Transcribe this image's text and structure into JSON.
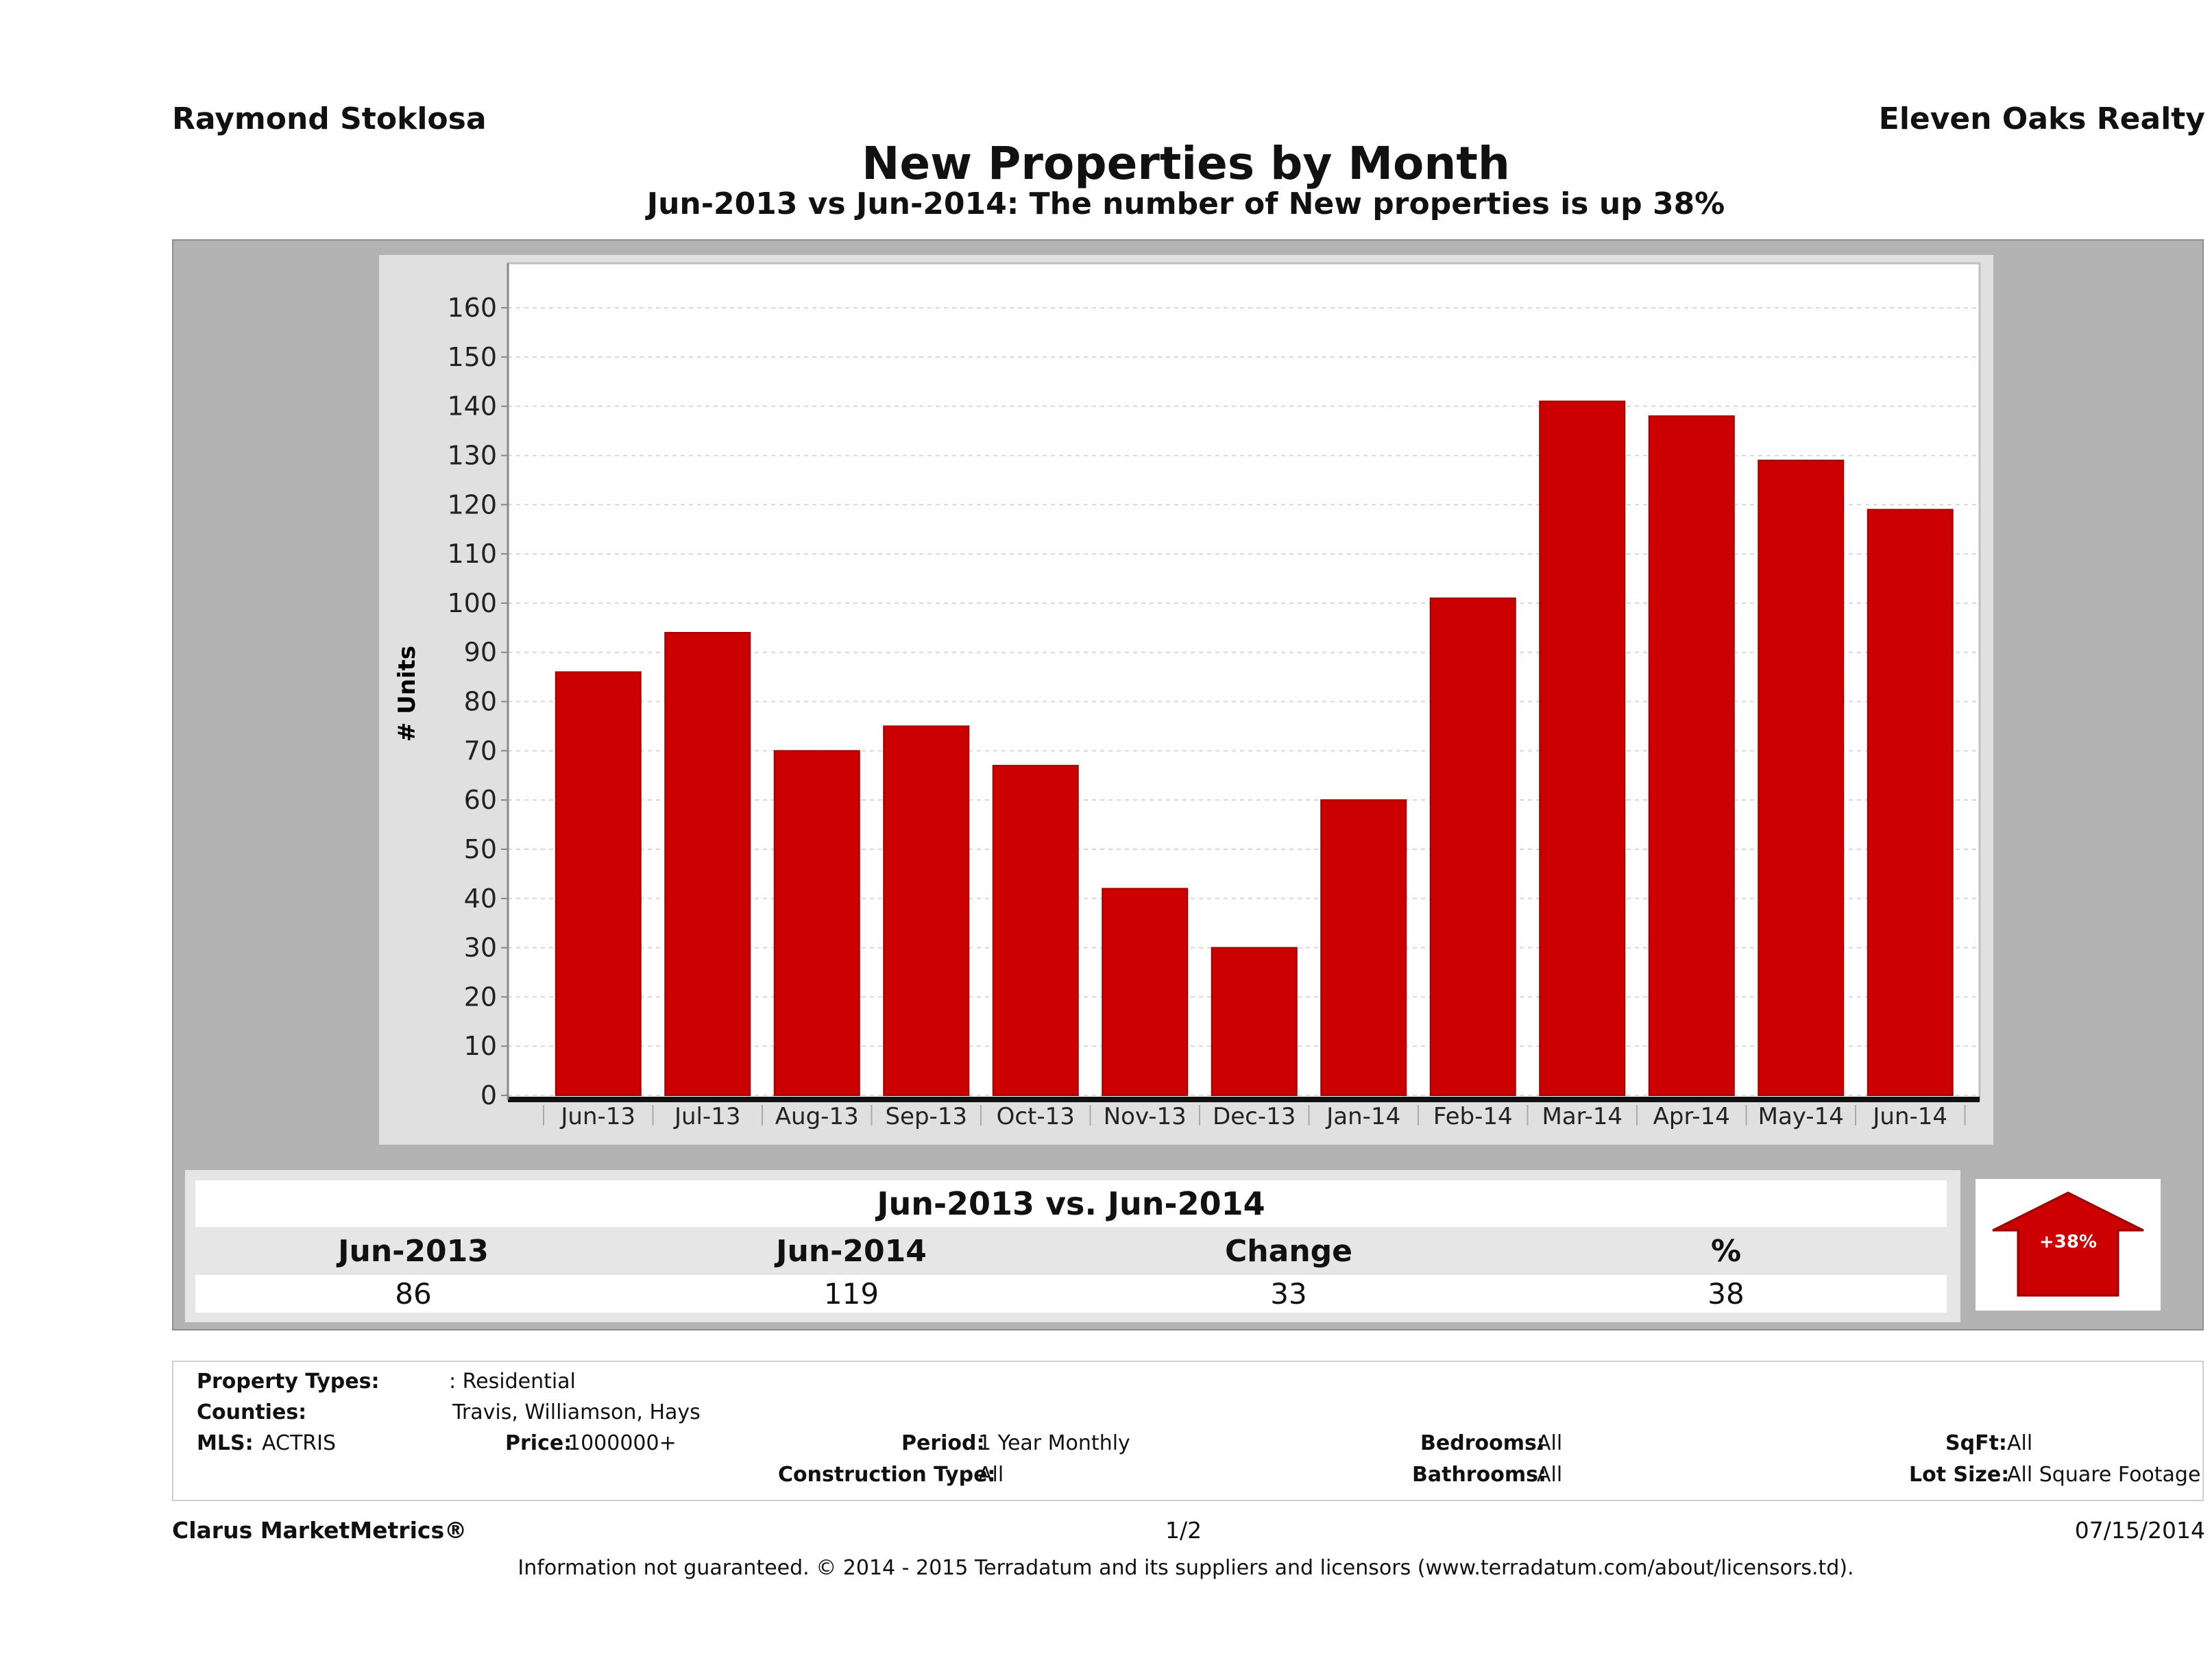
{
  "header": {
    "agent_name": "Raymond Stoklosa",
    "company": "Eleven Oaks Realty",
    "title": "New Properties by Month",
    "subtitle": "Jun-2013 vs Jun-2014: The number of New  properties is up 38%"
  },
  "chart_data": {
    "type": "bar",
    "title": "New Properties by Month",
    "subtitle": "Jun-2013 vs Jun-2014: The number of New  properties is up 38%",
    "xlabel": "",
    "ylabel": "# Units",
    "categories": [
      "Jun-13",
      "Jul-13",
      "Aug-13",
      "Sep-13",
      "Oct-13",
      "Nov-13",
      "Dec-13",
      "Jan-14",
      "Feb-14",
      "Mar-14",
      "Apr-14",
      "May-14",
      "Jun-14"
    ],
    "values": [
      86,
      94,
      70,
      75,
      67,
      42,
      30,
      60,
      101,
      141,
      138,
      129,
      119
    ],
    "ylim": [
      0,
      160
    ],
    "yticks": [
      0,
      10,
      20,
      30,
      40,
      50,
      60,
      70,
      80,
      90,
      100,
      110,
      120,
      130,
      140,
      150,
      160
    ],
    "grid": true,
    "legend": "none",
    "bar_color": "#cc0000"
  },
  "summary": {
    "title": "Jun-2013 vs. Jun-2014",
    "headers": [
      "Jun-2013",
      "Jun-2014",
      "Change",
      "%"
    ],
    "values": [
      "86",
      "119",
      "33",
      "38"
    ],
    "badge": "+38%",
    "badge_color": "#cc0000"
  },
  "criteria": {
    "property_types_label": "Property Types:",
    "property_types_value": ": Residential",
    "counties_label": "Counties:",
    "counties_value": "Travis, Williamson, Hays",
    "mls_label": "MLS:",
    "mls_value": "ACTRIS",
    "price_label": "Price:",
    "price_value": "1000000+",
    "period_label": "Period:",
    "period_value": "1 Year Monthly",
    "construction_label": "Construction Type:",
    "construction_value": "All",
    "bedrooms_label": "Bedrooms:",
    "bedrooms_value": "All",
    "bathrooms_label": "Bathrooms:",
    "bathrooms_value": "All",
    "sqft_label": "SqFt:",
    "sqft_value": "All",
    "lotsize_label": "Lot Size:",
    "lotsize_value": "All Square Footage"
  },
  "footer": {
    "brand": "Clarus MarketMetrics®",
    "page": "1/2",
    "date": "07/15/2014",
    "disclaimer": "Information not guaranteed. © 2014 - 2015 Terradatum and its suppliers and licensors (www.terradatum.com/about/licensors.td)."
  }
}
